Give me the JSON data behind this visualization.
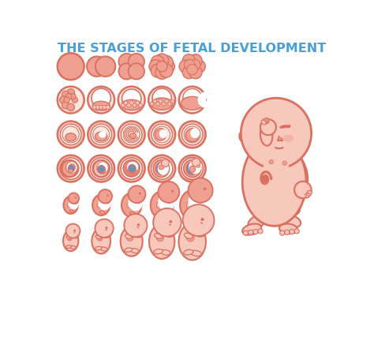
{
  "title": "THE STAGES OF FETAL DEVELOPMENT",
  "title_color": "#4a9fd4",
  "title_fontsize": 11.5,
  "bg_color": "#ffffff",
  "skin_color": "#f0a090",
  "skin_dark": "#d97060",
  "skin_light": "#f8c8bc",
  "skin_lighter": "#fde8e0",
  "border_color": "#d97060",
  "blue_accent": "#7090b8",
  "grid_cols": [
    38,
    88,
    138,
    188,
    238
  ],
  "grid_rows": [
    390,
    335,
    278,
    222,
    162,
    105
  ],
  "cell_r": 22
}
